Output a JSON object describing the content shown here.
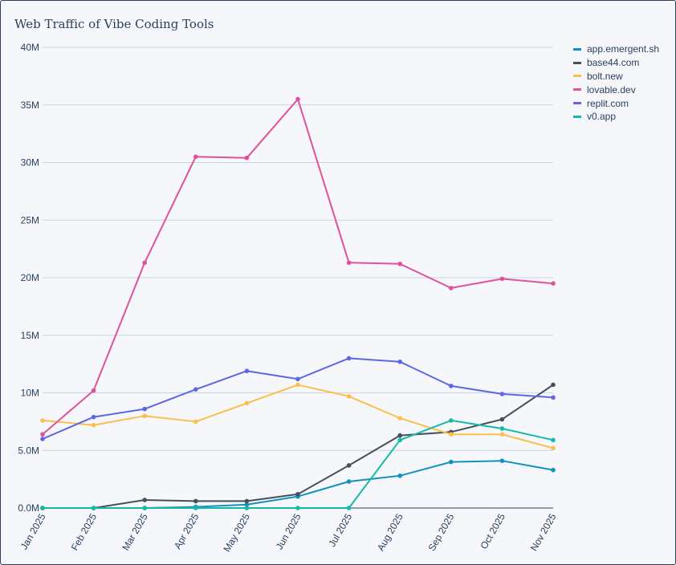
{
  "chart_data": {
    "type": "line",
    "title": "Web Traffic of Vibe Coding Tools",
    "xlabel": "",
    "ylabel": "",
    "ylim": [
      0,
      40000000
    ],
    "y_ticks": [
      0,
      5000000,
      10000000,
      15000000,
      20000000,
      25000000,
      30000000,
      35000000,
      40000000
    ],
    "y_tick_labels": [
      "0.0M",
      "5.0M",
      "10M",
      "15M",
      "20M",
      "25M",
      "30M",
      "35M",
      "40M"
    ],
    "categories": [
      "Jan 2025",
      "Feb 2025",
      "Mar 2025",
      "Apr 2025",
      "May 2025",
      "Jun 2025",
      "Jul 2025",
      "Aug 2025",
      "Sep 2025",
      "Oct 2025",
      "Nov 2025"
    ],
    "legend_position": "top-right",
    "grid": true,
    "series": [
      {
        "name": "app.emergent.sh",
        "color": "#1491be",
        "values": [
          0,
          0,
          0,
          100000,
          300000,
          1000000,
          2300000,
          2800000,
          4000000,
          4100000,
          3300000
        ]
      },
      {
        "name": "base44.com",
        "color": "#46505d",
        "values": [
          0,
          0,
          700000,
          600000,
          600000,
          1200000,
          3700000,
          6300000,
          6600000,
          7700000,
          10700000
        ]
      },
      {
        "name": "bolt.new",
        "color": "#fbbf4e",
        "values": [
          7600000,
          7200000,
          8000000,
          7500000,
          9100000,
          10700000,
          9700000,
          7800000,
          6400000,
          6400000,
          5200000
        ]
      },
      {
        "name": "lovable.dev",
        "color": "#e0519c",
        "values": [
          6400000,
          10200000,
          21300000,
          30500000,
          30400000,
          35500000,
          21300000,
          21200000,
          19100000,
          19900000,
          19500000
        ]
      },
      {
        "name": "replit.com",
        "color": "#5d67e6",
        "values": [
          6000000,
          7900000,
          8600000,
          10300000,
          11900000,
          11200000,
          13000000,
          12700000,
          10600000,
          9900000,
          9600000
        ]
      },
      {
        "name": "v0.app",
        "color": "#15baa6",
        "values": [
          0,
          0,
          0,
          0,
          0,
          0,
          0,
          5900000,
          7600000,
          6900000,
          5900000
        ]
      }
    ]
  }
}
